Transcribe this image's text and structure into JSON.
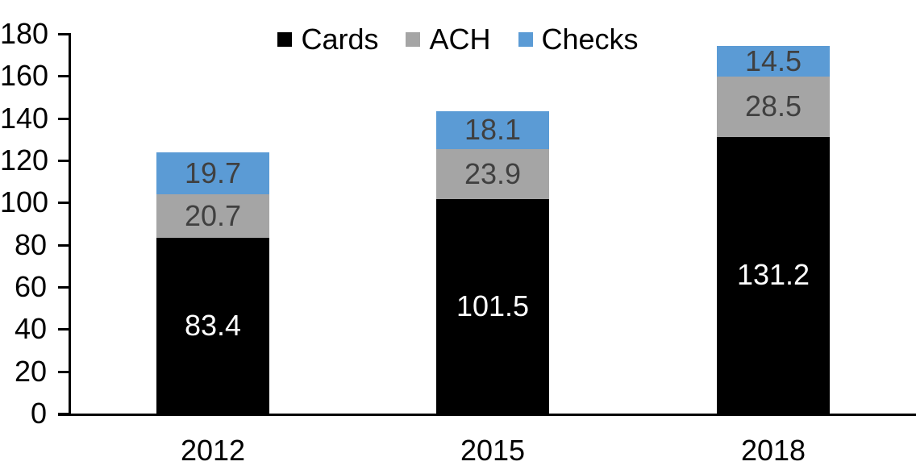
{
  "chart_data": {
    "type": "bar",
    "stacked": true,
    "title": "",
    "xlabel": "",
    "ylabel": "",
    "categories": [
      "2012",
      "2015",
      "2018"
    ],
    "series": [
      {
        "name": "Cards",
        "color": "#000000",
        "label_color": "#FFFFFF",
        "values": [
          83.4,
          101.5,
          131.2
        ]
      },
      {
        "name": "ACH",
        "color": "#A5A5A5",
        "label_color": "#404040",
        "values": [
          20.7,
          23.9,
          28.5
        ]
      },
      {
        "name": "Checks",
        "color": "#5B9BD5",
        "label_color": "#404040",
        "values": [
          19.7,
          18.1,
          14.5
        ]
      }
    ],
    "totals": [
      123.8,
      143.5,
      174.2
    ],
    "y_ticks": [
      0,
      20,
      40,
      60,
      80,
      100,
      120,
      140,
      160,
      180
    ],
    "ylim": [
      0,
      180
    ],
    "value_decimals": 1,
    "legend_position": "top-center",
    "grid": false,
    "background_color": "#FFFFFF",
    "axis_color": "#000000"
  }
}
